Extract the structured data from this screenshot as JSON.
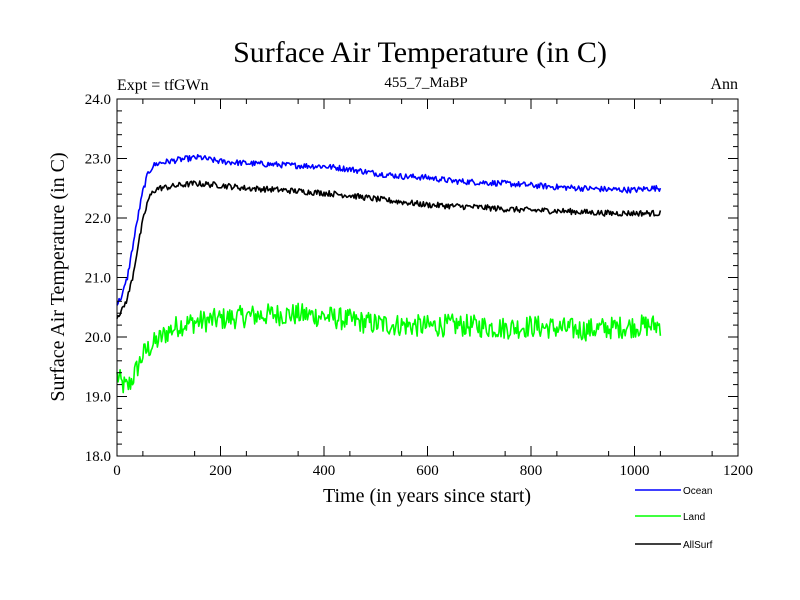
{
  "chart_data": {
    "type": "line",
    "title": "Surface Air Temperature (in C)",
    "subtitle": "455_7_MaBP",
    "experiment_label": "Expt = tfGWn",
    "period_label": "Ann",
    "xlabel": "Time (in years since start)",
    "ylabel": "Surface Air Temperature (in C)",
    "xlim": [
      0,
      1200
    ],
    "ylim": [
      18.0,
      24.0
    ],
    "x_ticks": [
      0,
      200,
      400,
      600,
      800,
      1000,
      1200
    ],
    "x_tick_labels": [
      "0",
      "200",
      "400",
      "600",
      "800",
      "1000",
      "1200"
    ],
    "y_ticks": [
      18.0,
      19.0,
      20.0,
      21.0,
      22.0,
      23.0,
      24.0
    ],
    "y_tick_labels": [
      "18.0",
      "19.0",
      "20.0",
      "21.0",
      "22.0",
      "23.0",
      "24.0"
    ],
    "grid": false,
    "legend_position": "bottom-right",
    "series": [
      {
        "name": "Ocean",
        "color": "#0000ff",
        "noise": 0.05,
        "points": [
          [
            0,
            20.55
          ],
          [
            10,
            20.7
          ],
          [
            20,
            21.0
          ],
          [
            30,
            21.5
          ],
          [
            40,
            22.0
          ],
          [
            50,
            22.45
          ],
          [
            60,
            22.75
          ],
          [
            70,
            22.88
          ],
          [
            80,
            22.92
          ],
          [
            100,
            22.95
          ],
          [
            120,
            22.98
          ],
          [
            140,
            23.0
          ],
          [
            160,
            23.02
          ],
          [
            180,
            22.98
          ],
          [
            200,
            22.95
          ],
          [
            250,
            22.92
          ],
          [
            300,
            22.9
          ],
          [
            350,
            22.88
          ],
          [
            400,
            22.87
          ],
          [
            450,
            22.82
          ],
          [
            500,
            22.75
          ],
          [
            550,
            22.7
          ],
          [
            600,
            22.68
          ],
          [
            650,
            22.62
          ],
          [
            700,
            22.6
          ],
          [
            750,
            22.58
          ],
          [
            800,
            22.55
          ],
          [
            850,
            22.52
          ],
          [
            900,
            22.5
          ],
          [
            950,
            22.48
          ],
          [
            1000,
            22.47
          ],
          [
            1030,
            22.5
          ],
          [
            1050,
            22.5
          ]
        ]
      },
      {
        "name": "Land",
        "color": "#00ff00",
        "noise": 0.19,
        "points": [
          [
            0,
            19.35
          ],
          [
            10,
            19.2
          ],
          [
            20,
            19.15
          ],
          [
            30,
            19.3
          ],
          [
            40,
            19.5
          ],
          [
            50,
            19.7
          ],
          [
            60,
            19.8
          ],
          [
            80,
            19.95
          ],
          [
            100,
            20.1
          ],
          [
            120,
            20.2
          ],
          [
            150,
            20.25
          ],
          [
            200,
            20.3
          ],
          [
            250,
            20.35
          ],
          [
            300,
            20.38
          ],
          [
            350,
            20.38
          ],
          [
            400,
            20.35
          ],
          [
            450,
            20.28
          ],
          [
            500,
            20.22
          ],
          [
            550,
            20.2
          ],
          [
            600,
            20.18
          ],
          [
            650,
            20.2
          ],
          [
            700,
            20.18
          ],
          [
            750,
            20.15
          ],
          [
            800,
            20.18
          ],
          [
            850,
            20.15
          ],
          [
            900,
            20.12
          ],
          [
            950,
            20.15
          ],
          [
            1000,
            20.18
          ],
          [
            1050,
            20.2
          ]
        ]
      },
      {
        "name": "AllSurf",
        "color": "#000000",
        "noise": 0.05,
        "points": [
          [
            0,
            20.35
          ],
          [
            10,
            20.45
          ],
          [
            20,
            20.65
          ],
          [
            30,
            21.0
          ],
          [
            40,
            21.5
          ],
          [
            50,
            21.95
          ],
          [
            60,
            22.3
          ],
          [
            70,
            22.45
          ],
          [
            80,
            22.5
          ],
          [
            100,
            22.52
          ],
          [
            120,
            22.55
          ],
          [
            150,
            22.58
          ],
          [
            200,
            22.55
          ],
          [
            250,
            22.5
          ],
          [
            300,
            22.48
          ],
          [
            350,
            22.45
          ],
          [
            400,
            22.42
          ],
          [
            450,
            22.38
          ],
          [
            500,
            22.32
          ],
          [
            550,
            22.27
          ],
          [
            600,
            22.22
          ],
          [
            650,
            22.2
          ],
          [
            700,
            22.18
          ],
          [
            750,
            22.15
          ],
          [
            800,
            22.13
          ],
          [
            850,
            22.12
          ],
          [
            900,
            22.1
          ],
          [
            950,
            22.08
          ],
          [
            1000,
            22.08
          ],
          [
            1050,
            22.08
          ]
        ]
      }
    ]
  }
}
